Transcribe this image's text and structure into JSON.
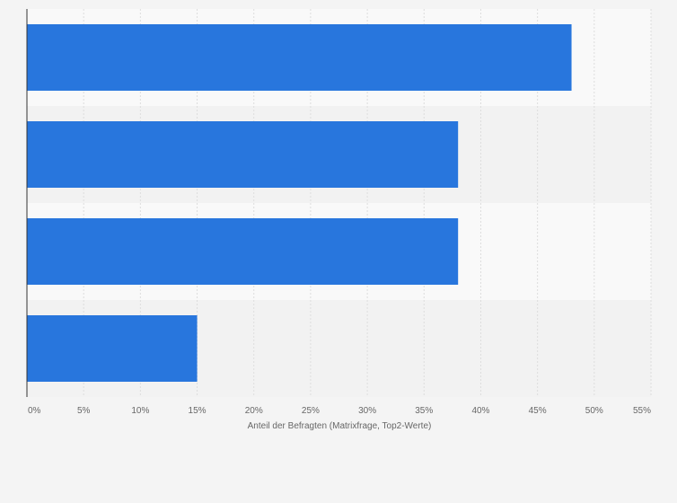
{
  "chart_data": {
    "type": "bar",
    "orientation": "horizontal",
    "categories": [
      "",
      "",
      "",
      ""
    ],
    "values": [
      48,
      38,
      38,
      15
    ],
    "xlabel": "Anteil der Befragten (Matrixfrage, Top2-Werte)",
    "ylabel": "",
    "xlim": [
      0,
      55
    ],
    "xticks": [
      0,
      5,
      10,
      15,
      20,
      25,
      30,
      35,
      40,
      45,
      50,
      55
    ],
    "xtick_labels": [
      "0%",
      "5%",
      "10%",
      "15%",
      "20%",
      "25%",
      "30%",
      "35%",
      "40%",
      "45%",
      "50%",
      "55%"
    ],
    "grid": true,
    "legend": "none",
    "colors": {
      "bar": "#2876dd",
      "band_light": "#f9f9f9",
      "band_dark": "#f2f2f2",
      "grid": "#dddddd",
      "axis": "#333333",
      "text": "#666666",
      "background": "#f4f4f4"
    }
  }
}
